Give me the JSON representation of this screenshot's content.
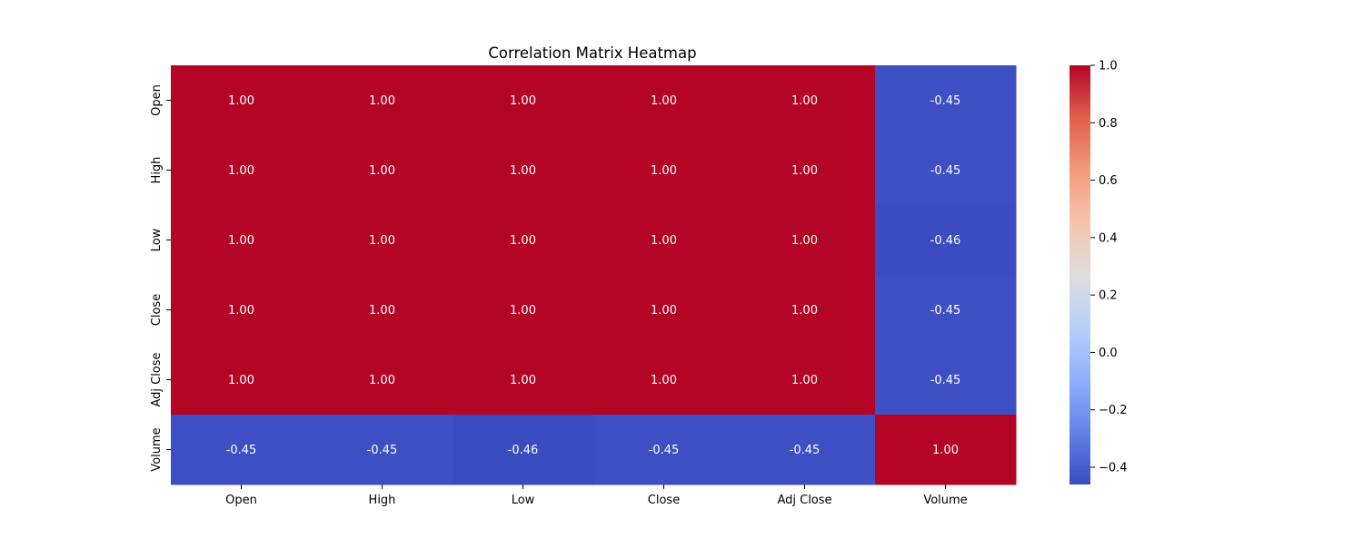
{
  "chart_data": {
    "type": "heatmap",
    "title": "Correlation Matrix Heatmap",
    "xlabel": "",
    "ylabel": "",
    "x_categories": [
      "Open",
      "High",
      "Low",
      "Close",
      "Adj Close",
      "Volume"
    ],
    "y_categories": [
      "Open",
      "High",
      "Low",
      "Close",
      "Adj Close",
      "Volume"
    ],
    "values": [
      [
        1.0,
        1.0,
        1.0,
        1.0,
        1.0,
        -0.45
      ],
      [
        1.0,
        1.0,
        1.0,
        1.0,
        1.0,
        -0.45
      ],
      [
        1.0,
        1.0,
        1.0,
        1.0,
        1.0,
        -0.46
      ],
      [
        1.0,
        1.0,
        1.0,
        1.0,
        1.0,
        -0.45
      ],
      [
        1.0,
        1.0,
        1.0,
        1.0,
        1.0,
        -0.45
      ],
      [
        -0.45,
        -0.45,
        -0.46,
        -0.45,
        -0.45,
        1.0
      ]
    ],
    "annotations": [
      [
        "1.00",
        "1.00",
        "1.00",
        "1.00",
        "1.00",
        "-0.45"
      ],
      [
        "1.00",
        "1.00",
        "1.00",
        "1.00",
        "1.00",
        "-0.45"
      ],
      [
        "1.00",
        "1.00",
        "1.00",
        "1.00",
        "1.00",
        "-0.46"
      ],
      [
        "1.00",
        "1.00",
        "1.00",
        "1.00",
        "1.00",
        "-0.45"
      ],
      [
        "1.00",
        "1.00",
        "1.00",
        "1.00",
        "1.00",
        "-0.45"
      ],
      [
        "-0.45",
        "-0.45",
        "-0.46",
        "-0.45",
        "-0.45",
        "1.00"
      ]
    ],
    "colormap": "coolwarm",
    "vmin": -0.46,
    "vmax": 1.0,
    "colorbar": {
      "tick_values": [
        1.0,
        0.8,
        0.6,
        0.4,
        0.2,
        0.0,
        -0.2,
        -0.4
      ],
      "tick_labels": [
        "1.0",
        "0.8",
        "0.6",
        "0.4",
        "0.2",
        "0.0",
        "−0.2",
        "−0.4"
      ]
    },
    "grid": false,
    "legend": "colorbar-right",
    "colors": {
      "cell_high": "#b40426",
      "cell_low": "#3b4cc0",
      "annotation_text": "#ffffff",
      "axis_text": "#000000"
    }
  }
}
